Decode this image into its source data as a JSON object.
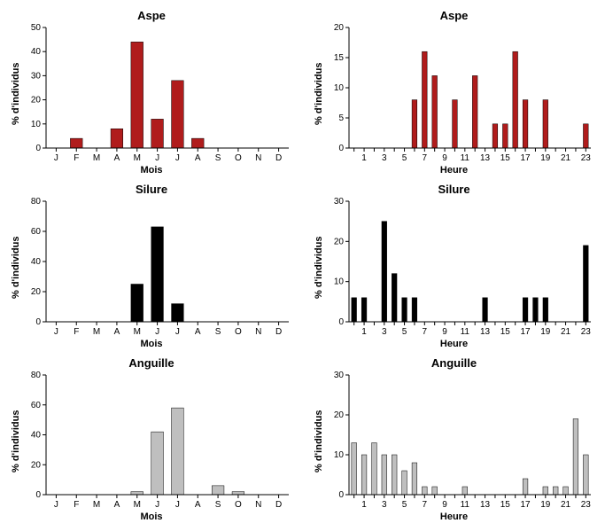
{
  "axis_color": "#000000",
  "background": "#ffffff",
  "label_fontsize": 11,
  "panels": [
    {
      "id": "aspe-mois",
      "title": "Aspe",
      "xlabel": "Mois",
      "ylabel": "% d'individus",
      "type": "bar",
      "categories": [
        "J",
        "F",
        "M",
        "A",
        "M",
        "J",
        "J",
        "A",
        "S",
        "O",
        "N",
        "D"
      ],
      "values": [
        0,
        4,
        0,
        8,
        44,
        12,
        28,
        4,
        0,
        0,
        0,
        0
      ],
      "bar_color": "#b01c1c",
      "bar_border": "#000000",
      "ylim": [
        0,
        50
      ],
      "ytick_step": 10,
      "bar_width": 0.6,
      "xtick_every": 1
    },
    {
      "id": "aspe-heure",
      "title": "Aspe",
      "xlabel": "Heure",
      "ylabel": "% d'individus",
      "type": "bar",
      "categories": [
        "0",
        "1",
        "2",
        "3",
        "4",
        "5",
        "6",
        "7",
        "8",
        "9",
        "10",
        "11",
        "12",
        "13",
        "14",
        "15",
        "16",
        "17",
        "18",
        "19",
        "20",
        "21",
        "22",
        "23"
      ],
      "values": [
        0,
        0,
        0,
        0,
        0,
        0,
        8,
        16,
        12,
        0,
        8,
        0,
        12,
        0,
        4,
        4,
        16,
        8,
        0,
        8,
        0,
        0,
        0,
        4
      ],
      "bar_color": "#b01c1c",
      "bar_border": "#000000",
      "ylim": [
        0,
        20
      ],
      "ytick_step": 5,
      "bar_width": 0.5,
      "xtick_every": 2,
      "xtick_start": 1
    },
    {
      "id": "silure-mois",
      "title": "Silure",
      "xlabel": "Mois",
      "ylabel": "% d'individus",
      "type": "bar",
      "categories": [
        "J",
        "F",
        "M",
        "A",
        "M",
        "J",
        "J",
        "A",
        "S",
        "O",
        "N",
        "D"
      ],
      "values": [
        0,
        0,
        0,
        0,
        25,
        63,
        12,
        0,
        0,
        0,
        0,
        0
      ],
      "bar_color": "#000000",
      "bar_border": "#000000",
      "ylim": [
        0,
        80
      ],
      "ytick_step": 20,
      "bar_width": 0.6,
      "xtick_every": 1
    },
    {
      "id": "silure-heure",
      "title": "Silure",
      "xlabel": "Heure",
      "ylabel": "% d'individus",
      "type": "bar",
      "categories": [
        "0",
        "1",
        "2",
        "3",
        "4",
        "5",
        "6",
        "7",
        "8",
        "9",
        "10",
        "11",
        "12",
        "13",
        "14",
        "15",
        "16",
        "17",
        "18",
        "19",
        "20",
        "21",
        "22",
        "23"
      ],
      "values": [
        6,
        6,
        0,
        25,
        12,
        6,
        6,
        0,
        0,
        0,
        0,
        0,
        0,
        6,
        0,
        0,
        0,
        6,
        6,
        6,
        0,
        0,
        0,
        19
      ],
      "bar_color": "#000000",
      "bar_border": "#000000",
      "ylim": [
        0,
        30
      ],
      "ytick_step": 10,
      "bar_width": 0.5,
      "xtick_every": 2,
      "xtick_start": 1
    },
    {
      "id": "anguille-mois",
      "title": "Anguille",
      "xlabel": "Mois",
      "ylabel": "% d'individus",
      "type": "bar",
      "categories": [
        "J",
        "F",
        "M",
        "A",
        "M",
        "J",
        "J",
        "A",
        "S",
        "O",
        "N",
        "D"
      ],
      "values": [
        0,
        0,
        0,
        0,
        2,
        42,
        58,
        0,
        6,
        2,
        0,
        0
      ],
      "bar_color": "#bfbfbf",
      "bar_border": "#000000",
      "ylim": [
        0,
        80
      ],
      "ytick_step": 20,
      "bar_width": 0.6,
      "xtick_every": 1
    },
    {
      "id": "anguille-heure",
      "title": "Anguille",
      "xlabel": "Heure",
      "ylabel": "% d'individus",
      "type": "bar",
      "categories": [
        "0",
        "1",
        "2",
        "3",
        "4",
        "5",
        "6",
        "7",
        "8",
        "9",
        "10",
        "11",
        "12",
        "13",
        "14",
        "15",
        "16",
        "17",
        "18",
        "19",
        "20",
        "21",
        "22",
        "23"
      ],
      "values": [
        13,
        10,
        13,
        10,
        10,
        6,
        8,
        2,
        2,
        0,
        0,
        2,
        0,
        0,
        0,
        0,
        0,
        4,
        0,
        2,
        2,
        2,
        19,
        10
      ],
      "bar_color": "#bfbfbf",
      "bar_border": "#000000",
      "ylim": [
        0,
        30
      ],
      "ytick_step": 10,
      "bar_width": 0.5,
      "xtick_every": 2,
      "xtick_start": 1
    }
  ]
}
